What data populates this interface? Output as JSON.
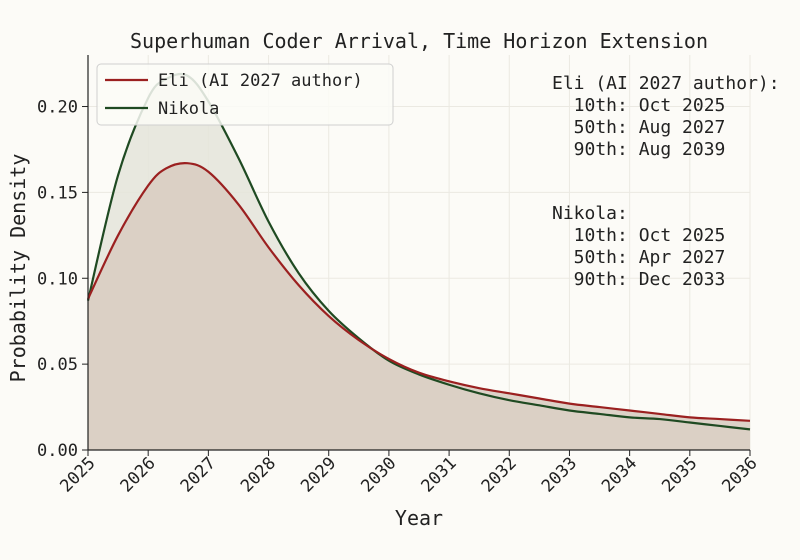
{
  "chart_data": {
    "type": "line",
    "title": "Superhuman Coder Arrival, Time Horizon Extension",
    "xlabel": "Year",
    "ylabel": "Probability Density",
    "xlim": [
      2025,
      2036
    ],
    "ylim": [
      0,
      0.23
    ],
    "xticks": [
      "2025",
      "2026",
      "2027",
      "2028",
      "2029",
      "2030",
      "2031",
      "2032",
      "2033",
      "2034",
      "2035",
      "2036"
    ],
    "yticks": [
      "0.00",
      "0.05",
      "0.10",
      "0.15",
      "0.20"
    ],
    "grid": true,
    "legend_position": "top-left",
    "fill_under_curves": true,
    "series": [
      {
        "name": "Eli (AI 2027 author)",
        "color": "#9b2020",
        "fill": "#d9cdc2",
        "x": [
          2025,
          2025.5,
          2026,
          2026.3,
          2026.65,
          2027,
          2027.5,
          2028,
          2028.5,
          2029,
          2029.5,
          2030,
          2030.5,
          2031,
          2031.5,
          2032,
          2032.5,
          2033,
          2033.5,
          2034,
          2034.5,
          2035,
          2035.5,
          2036
        ],
        "y": [
          0.088,
          0.125,
          0.154,
          0.164,
          0.167,
          0.162,
          0.143,
          0.118,
          0.096,
          0.078,
          0.064,
          0.053,
          0.045,
          0.04,
          0.036,
          0.033,
          0.03,
          0.027,
          0.025,
          0.023,
          0.021,
          0.019,
          0.018,
          0.017
        ]
      },
      {
        "name": "Nikola",
        "color": "#1f4a22",
        "fill": "#e5e6dc",
        "x": [
          2025,
          2025.5,
          2026,
          2026.3,
          2026.65,
          2027,
          2027.5,
          2028,
          2028.5,
          2029,
          2029.5,
          2030,
          2030.5,
          2031,
          2031.5,
          2032,
          2032.5,
          2033,
          2033.5,
          2034,
          2034.5,
          2035,
          2035.5,
          2036
        ],
        "y": [
          0.087,
          0.16,
          0.205,
          0.216,
          0.218,
          0.203,
          0.17,
          0.133,
          0.103,
          0.081,
          0.065,
          0.052,
          0.044,
          0.038,
          0.033,
          0.029,
          0.026,
          0.023,
          0.021,
          0.019,
          0.018,
          0.016,
          0.014,
          0.012
        ]
      }
    ],
    "annotations": [
      {
        "group": "eli",
        "lines": [
          "Eli (AI 2027 author):",
          "  10th: Oct 2025",
          "  50th: Aug 2027",
          "  90th: Aug 2039"
        ]
      },
      {
        "group": "nikola",
        "lines": [
          "Nikola:",
          "  10th: Oct 2025",
          "  50th: Apr 2027",
          "  90th: Dec 2033"
        ]
      }
    ]
  }
}
